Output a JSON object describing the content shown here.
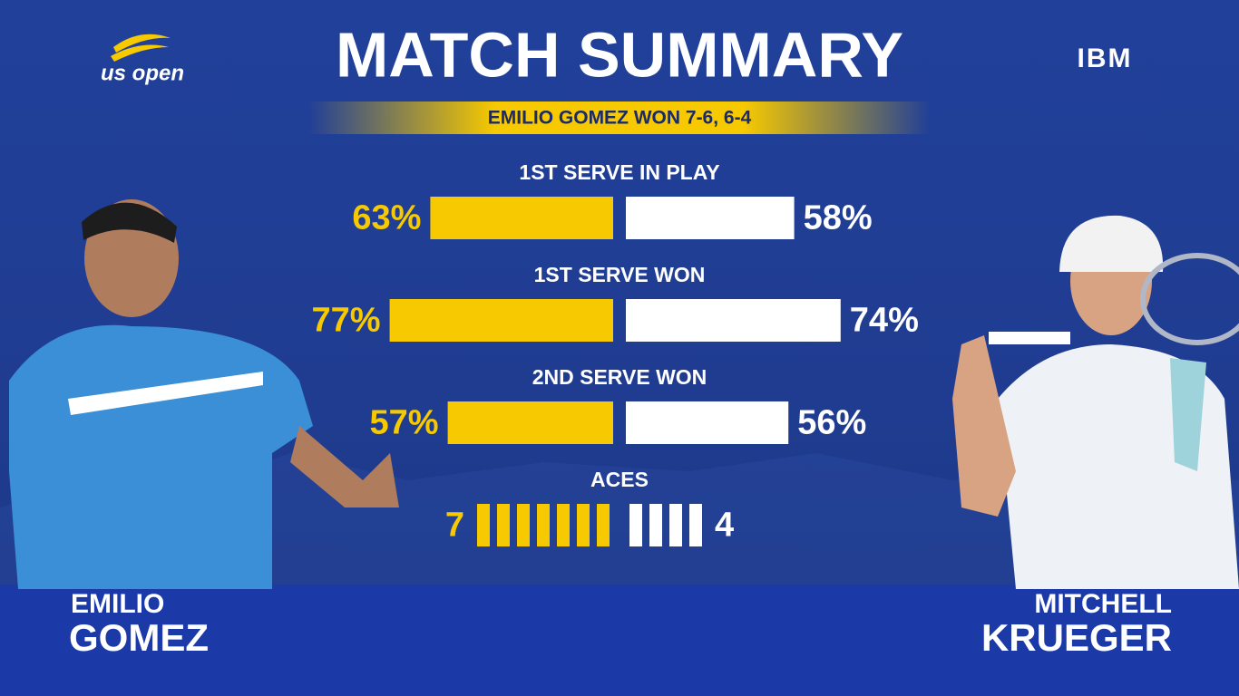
{
  "header": {
    "logo": "us open",
    "title": "MATCH SUMMARY",
    "sponsor": "IBM",
    "result": "EMILIO GOMEZ WON 7-6, 6-4"
  },
  "players": [
    {
      "first": "EMILIO",
      "last": "GOMEZ",
      "color": "#f6c900"
    },
    {
      "first": "MITCHELL",
      "last": "KRUEGER",
      "color": "#ffffff"
    }
  ],
  "stats": [
    {
      "label": "1ST SERVE IN PLAY",
      "values": [
        63,
        58
      ],
      "value_labels": [
        "63%",
        "58%"
      ],
      "style": "bar"
    },
    {
      "label": "1ST SERVE WON",
      "values": [
        77,
        74
      ],
      "value_labels": [
        "77%",
        "74%"
      ],
      "style": "bar"
    },
    {
      "label": "2ND SERVE WON",
      "values": [
        57,
        56
      ],
      "value_labels": [
        "57%",
        "56%"
      ],
      "style": "bar"
    },
    {
      "label": "ACES",
      "values": [
        7,
        4
      ],
      "style": "count"
    }
  ]
}
